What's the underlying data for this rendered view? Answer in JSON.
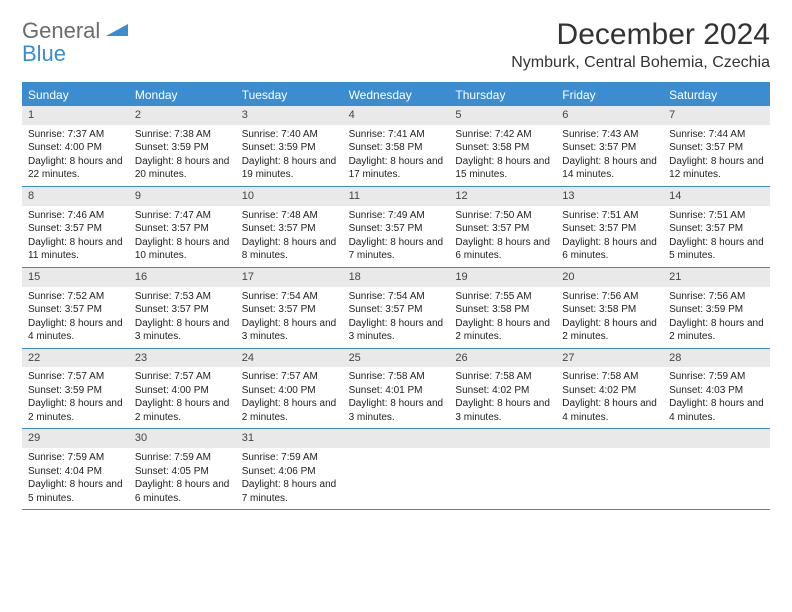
{
  "logo": {
    "line1": "General",
    "line2": "Blue"
  },
  "title": "December 2024",
  "location": "Nymburk, Central Bohemia, Czechia",
  "colors": {
    "header_blue": "#3b8dd0",
    "day_bar_gray": "#e9e9e9",
    "text_dark": "#333333",
    "logo_gray": "#6b6b6b"
  },
  "dayHeaders": [
    "Sunday",
    "Monday",
    "Tuesday",
    "Wednesday",
    "Thursday",
    "Friday",
    "Saturday"
  ],
  "weeks": [
    [
      {
        "n": "1",
        "sr": "7:37 AM",
        "ss": "4:00 PM",
        "dl": "8 hours and 22 minutes."
      },
      {
        "n": "2",
        "sr": "7:38 AM",
        "ss": "3:59 PM",
        "dl": "8 hours and 20 minutes."
      },
      {
        "n": "3",
        "sr": "7:40 AM",
        "ss": "3:59 PM",
        "dl": "8 hours and 19 minutes."
      },
      {
        "n": "4",
        "sr": "7:41 AM",
        "ss": "3:58 PM",
        "dl": "8 hours and 17 minutes."
      },
      {
        "n": "5",
        "sr": "7:42 AM",
        "ss": "3:58 PM",
        "dl": "8 hours and 15 minutes."
      },
      {
        "n": "6",
        "sr": "7:43 AM",
        "ss": "3:57 PM",
        "dl": "8 hours and 14 minutes."
      },
      {
        "n": "7",
        "sr": "7:44 AM",
        "ss": "3:57 PM",
        "dl": "8 hours and 12 minutes."
      }
    ],
    [
      {
        "n": "8",
        "sr": "7:46 AM",
        "ss": "3:57 PM",
        "dl": "8 hours and 11 minutes."
      },
      {
        "n": "9",
        "sr": "7:47 AM",
        "ss": "3:57 PM",
        "dl": "8 hours and 10 minutes."
      },
      {
        "n": "10",
        "sr": "7:48 AM",
        "ss": "3:57 PM",
        "dl": "8 hours and 8 minutes."
      },
      {
        "n": "11",
        "sr": "7:49 AM",
        "ss": "3:57 PM",
        "dl": "8 hours and 7 minutes."
      },
      {
        "n": "12",
        "sr": "7:50 AM",
        "ss": "3:57 PM",
        "dl": "8 hours and 6 minutes."
      },
      {
        "n": "13",
        "sr": "7:51 AM",
        "ss": "3:57 PM",
        "dl": "8 hours and 6 minutes."
      },
      {
        "n": "14",
        "sr": "7:51 AM",
        "ss": "3:57 PM",
        "dl": "8 hours and 5 minutes."
      }
    ],
    [
      {
        "n": "15",
        "sr": "7:52 AM",
        "ss": "3:57 PM",
        "dl": "8 hours and 4 minutes."
      },
      {
        "n": "16",
        "sr": "7:53 AM",
        "ss": "3:57 PM",
        "dl": "8 hours and 3 minutes."
      },
      {
        "n": "17",
        "sr": "7:54 AM",
        "ss": "3:57 PM",
        "dl": "8 hours and 3 minutes."
      },
      {
        "n": "18",
        "sr": "7:54 AM",
        "ss": "3:57 PM",
        "dl": "8 hours and 3 minutes."
      },
      {
        "n": "19",
        "sr": "7:55 AM",
        "ss": "3:58 PM",
        "dl": "8 hours and 2 minutes."
      },
      {
        "n": "20",
        "sr": "7:56 AM",
        "ss": "3:58 PM",
        "dl": "8 hours and 2 minutes."
      },
      {
        "n": "21",
        "sr": "7:56 AM",
        "ss": "3:59 PM",
        "dl": "8 hours and 2 minutes."
      }
    ],
    [
      {
        "n": "22",
        "sr": "7:57 AM",
        "ss": "3:59 PM",
        "dl": "8 hours and 2 minutes."
      },
      {
        "n": "23",
        "sr": "7:57 AM",
        "ss": "4:00 PM",
        "dl": "8 hours and 2 minutes."
      },
      {
        "n": "24",
        "sr": "7:57 AM",
        "ss": "4:00 PM",
        "dl": "8 hours and 2 minutes."
      },
      {
        "n": "25",
        "sr": "7:58 AM",
        "ss": "4:01 PM",
        "dl": "8 hours and 3 minutes."
      },
      {
        "n": "26",
        "sr": "7:58 AM",
        "ss": "4:02 PM",
        "dl": "8 hours and 3 minutes."
      },
      {
        "n": "27",
        "sr": "7:58 AM",
        "ss": "4:02 PM",
        "dl": "8 hours and 4 minutes."
      },
      {
        "n": "28",
        "sr": "7:59 AM",
        "ss": "4:03 PM",
        "dl": "8 hours and 4 minutes."
      }
    ],
    [
      {
        "n": "29",
        "sr": "7:59 AM",
        "ss": "4:04 PM",
        "dl": "8 hours and 5 minutes."
      },
      {
        "n": "30",
        "sr": "7:59 AM",
        "ss": "4:05 PM",
        "dl": "8 hours and 6 minutes."
      },
      {
        "n": "31",
        "sr": "7:59 AM",
        "ss": "4:06 PM",
        "dl": "8 hours and 7 minutes."
      },
      null,
      null,
      null,
      null
    ]
  ],
  "labels": {
    "sunrise": "Sunrise:",
    "sunset": "Sunset:",
    "daylight": "Daylight:"
  }
}
